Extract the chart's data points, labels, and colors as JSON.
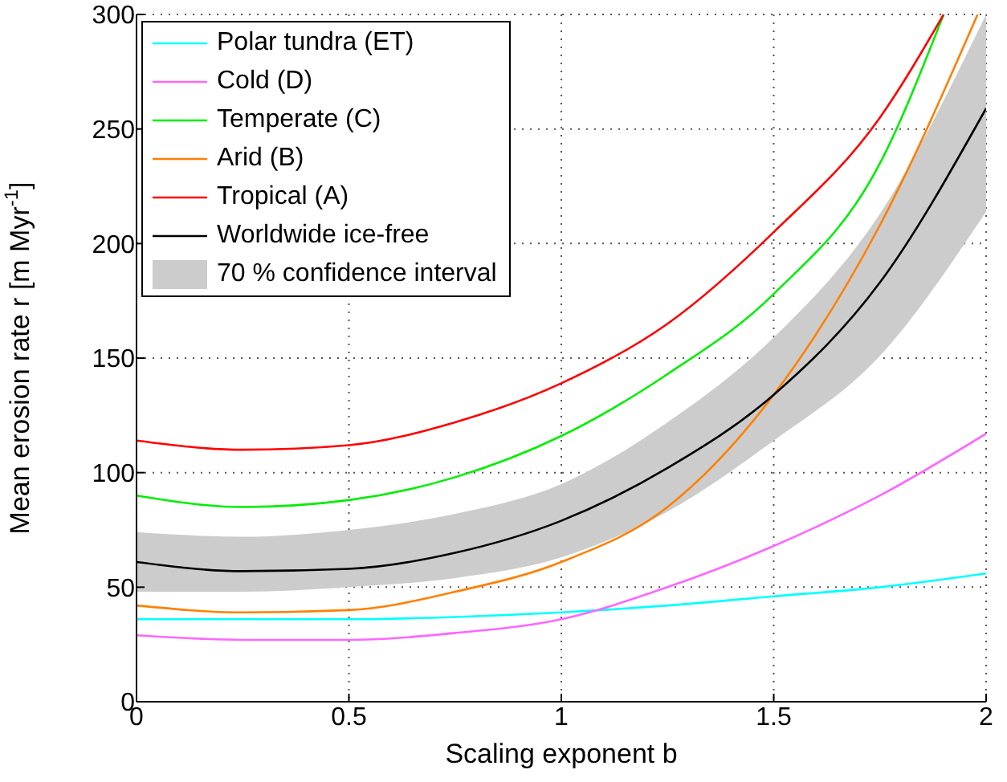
{
  "chart_data": {
    "type": "line",
    "xlabel": "Scaling exponent b",
    "ylabel": "Mean erosion rate r [m Myr$^{-1}$]",
    "xlim": [
      0,
      2
    ],
    "ylim": [
      0,
      300
    ],
    "xticks": [
      0,
      0.5,
      1,
      1.5,
      2
    ],
    "yticks": [
      0,
      50,
      100,
      150,
      200,
      250,
      300
    ],
    "grid": true,
    "legend": "top left",
    "line_style": "solid",
    "annotations": [
      "70 % confidence interval"
    ],
    "series": [
      {
        "name": "Polar tundra (ET)",
        "color": "#00ffff",
        "x": [
          0,
          0.25,
          0.5,
          0.75,
          1,
          1.25,
          1.5,
          1.75,
          2
        ],
        "values": [
          36,
          36,
          36,
          37,
          39,
          42,
          46,
          50,
          56
        ]
      },
      {
        "name": "Cold (D)",
        "color": "#ff66ff",
        "x": [
          0,
          0.25,
          0.5,
          0.75,
          1,
          1.25,
          1.5,
          1.75,
          2
        ],
        "values": [
          29,
          27,
          27,
          30,
          36,
          50,
          68,
          90,
          117
        ]
      },
      {
        "name": "Temperate (C)",
        "color": "#00ee00",
        "x": [
          0,
          0.25,
          0.5,
          0.75,
          1,
          1.25,
          1.5,
          1.75,
          1.9
        ],
        "values": [
          90,
          85,
          88,
          98,
          116,
          143,
          178,
          235,
          300
        ]
      },
      {
        "name": "Arid (B)",
        "color": "#ff8000",
        "x": [
          0,
          0.25,
          0.5,
          0.75,
          1,
          1.25,
          1.5,
          1.75,
          1.98
        ],
        "values": [
          42,
          39,
          40,
          48,
          61,
          85,
          134,
          208,
          300
        ]
      },
      {
        "name": "Tropical (A)",
        "color": "#ff0000",
        "x": [
          0,
          0.25,
          0.5,
          0.75,
          1,
          1.25,
          1.5,
          1.75,
          1.9
        ],
        "values": [
          114,
          110,
          112,
          122,
          139,
          165,
          205,
          255,
          300
        ]
      },
      {
        "name": "Worldwide ice-free",
        "color": "#000000",
        "x": [
          0,
          0.25,
          0.5,
          0.75,
          1,
          1.25,
          1.5,
          1.75,
          2
        ],
        "values": [
          61,
          57,
          58,
          65,
          79,
          102,
          134,
          183,
          259
        ],
        "lower": [
          48,
          48,
          50,
          54,
          63,
          83,
          114,
          151,
          214
        ],
        "upper": [
          74,
          72,
          75,
          82,
          95,
          122,
          159,
          213,
          300
        ]
      }
    ]
  }
}
